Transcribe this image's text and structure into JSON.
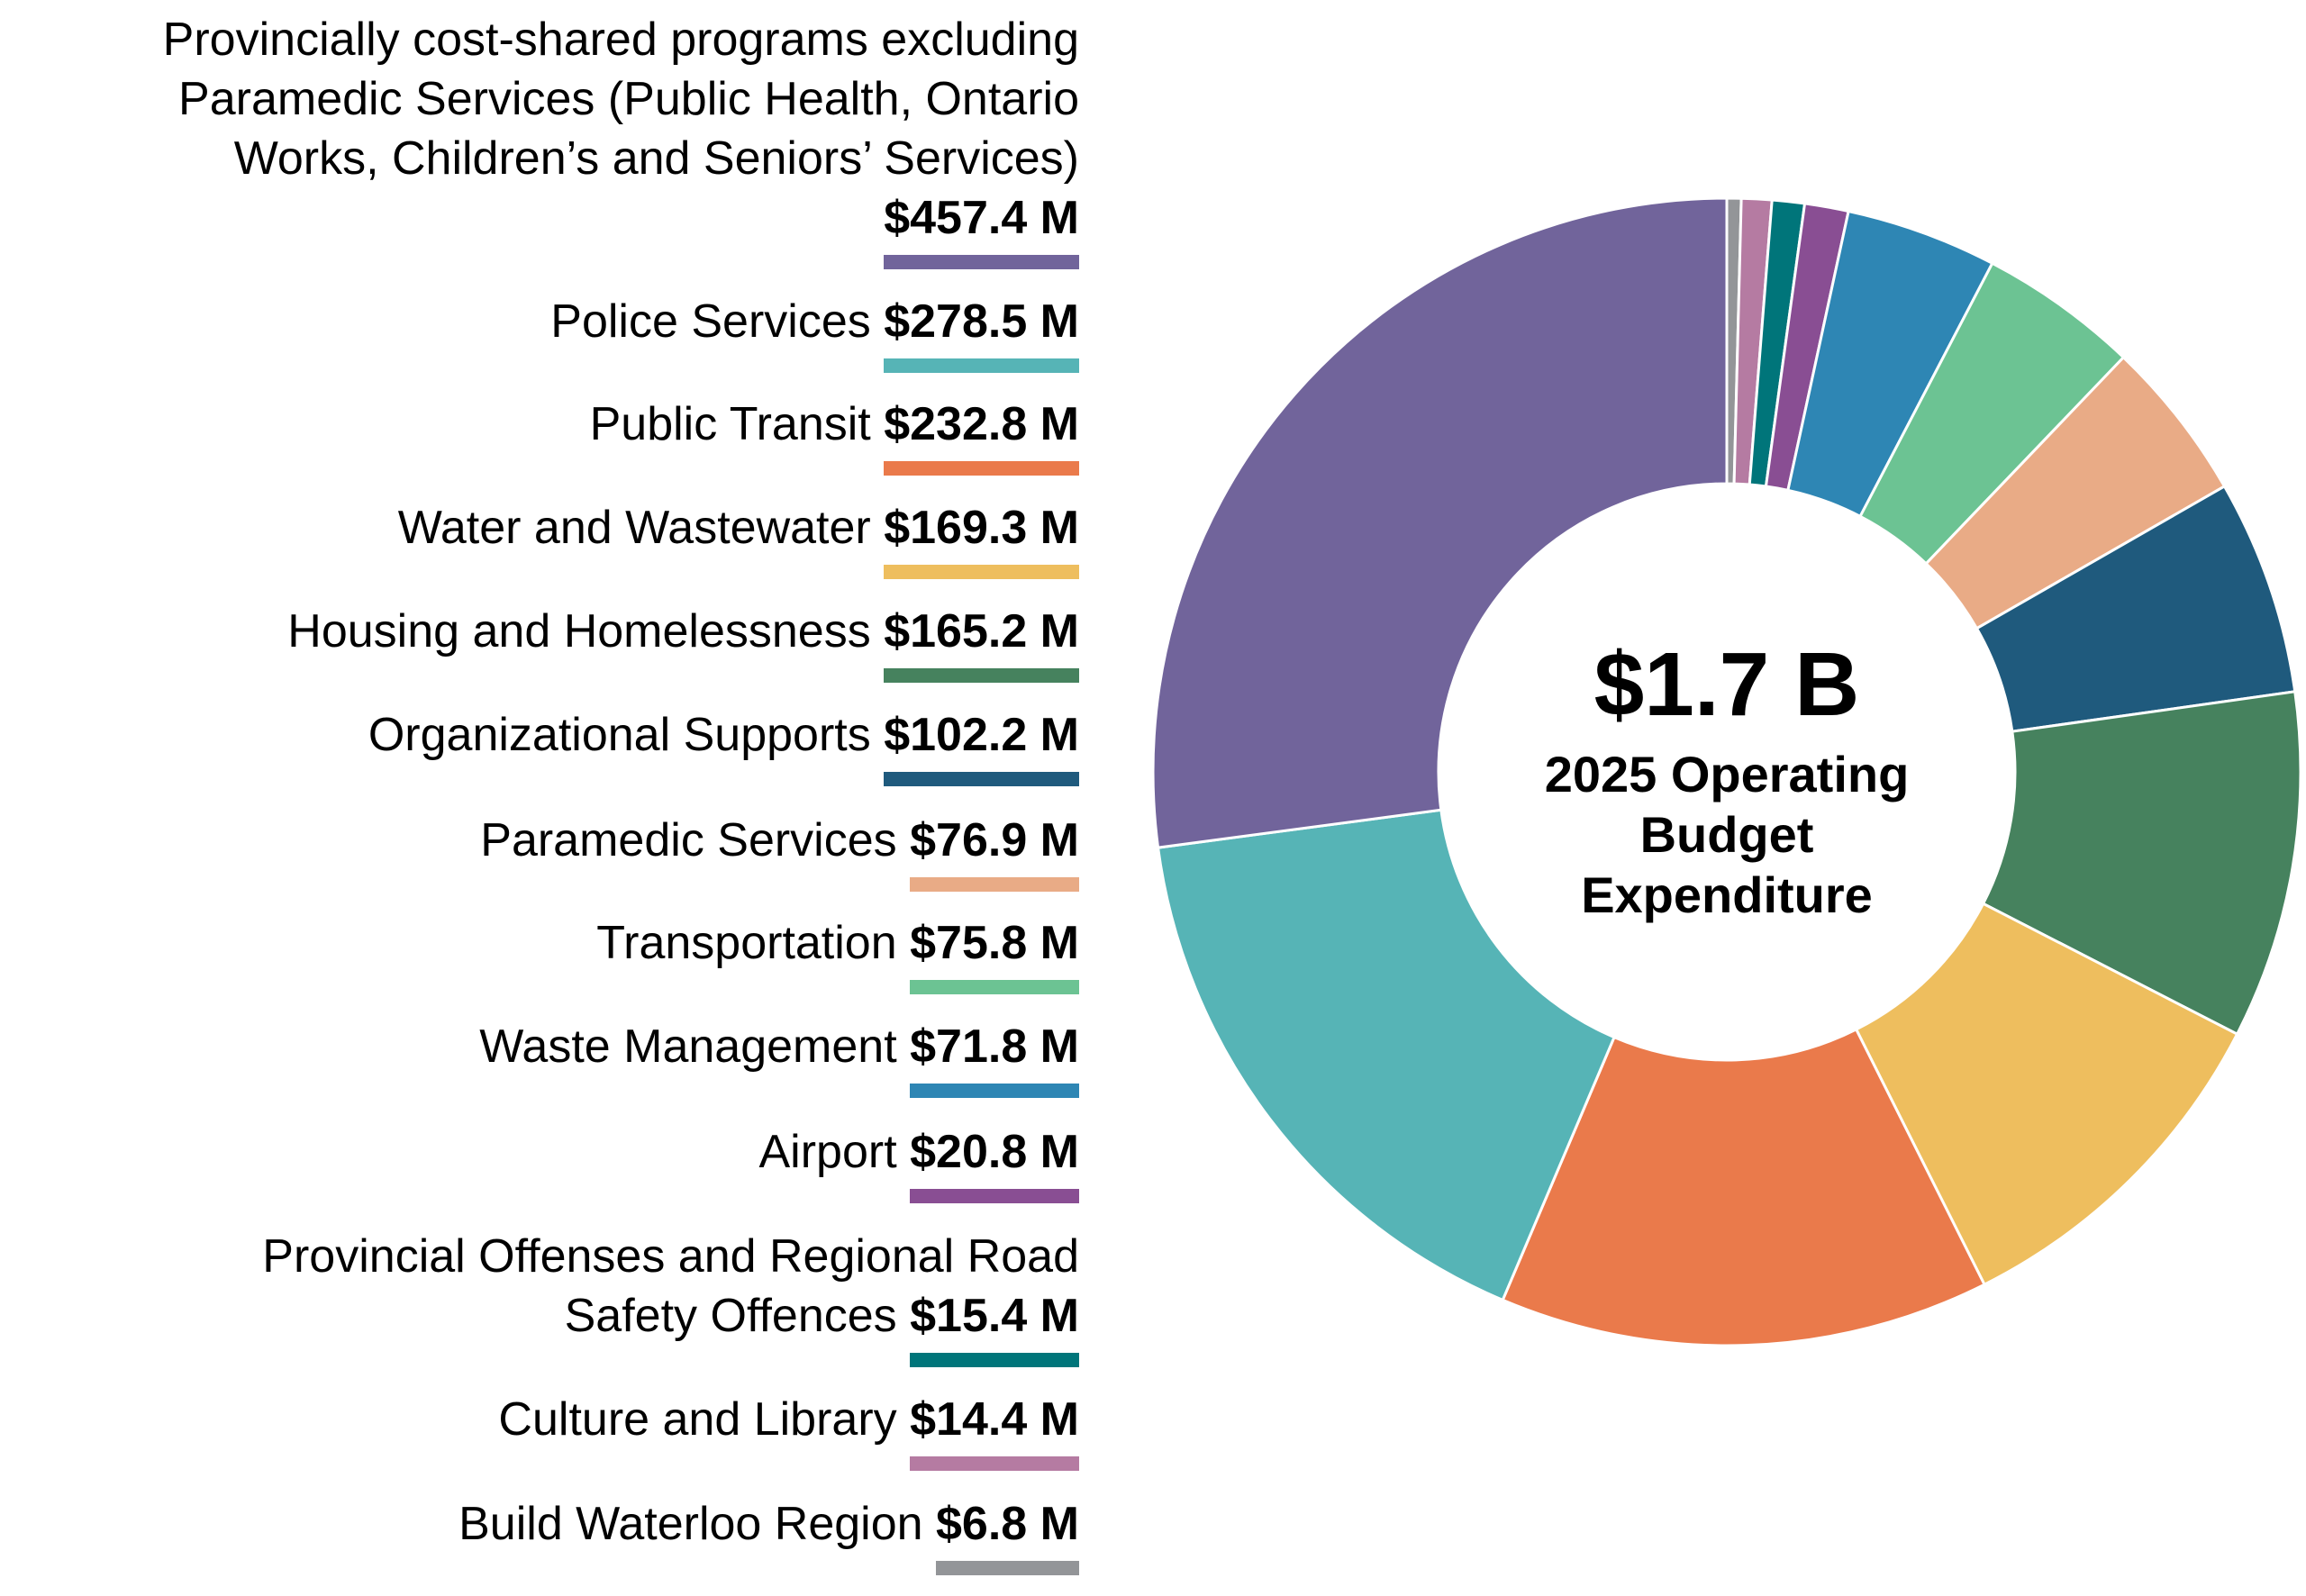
{
  "chart_data": {
    "type": "pie",
    "variant": "donut",
    "center_total": "$1.7 B",
    "center_label": "2025 Operating\nBudget\nExpenditure",
    "legend_placement": "left",
    "unit": "$ M",
    "slices": [
      {
        "label": "Provincially cost-shared programs excluding\nParamedic Services (Public Health, Ontario\nWorks, Children’s and Seniors’ Services)\n",
        "value": 457.4,
        "value_label": "$457.4 M",
        "color": "#71649b"
      },
      {
        "label": "Police Services ",
        "value": 278.5,
        "value_label": "$278.5 M",
        "color": "#56b4b6"
      },
      {
        "label": "Public Transit ",
        "value": 232.8,
        "value_label": "$232.8 M",
        "color": "#ea7a4b"
      },
      {
        "label": "Water and Wastewater ",
        "value": 169.3,
        "value_label": "$169.3 M",
        "color": "#eebe5e"
      },
      {
        "label": "Housing and Homelessness ",
        "value": 165.2,
        "value_label": "$165.2 M",
        "color": "#46825e"
      },
      {
        "label": "Organizational Supports ",
        "value": 102.2,
        "value_label": "$102.2 M",
        "color": "#1f5a7d"
      },
      {
        "label": "Paramedic Services ",
        "value": 76.9,
        "value_label": "$76.9 M",
        "color": "#e9ab86"
      },
      {
        "label": "Transportation ",
        "value": 75.8,
        "value_label": "$75.8 M",
        "color": "#6cc393"
      },
      {
        "label": "Waste Management ",
        "value": 71.8,
        "value_label": "$71.8 M",
        "color": "#2e86b4"
      },
      {
        "label": "Airport ",
        "value": 20.8,
        "value_label": "$20.8 M",
        "color": "#894e93"
      },
      {
        "label": "Provincial Offenses and Regional Road\nSafety Offences ",
        "value": 15.4,
        "value_label": "$15.4 M",
        "color": "#00757a"
      },
      {
        "label": "Culture and Library ",
        "value": 14.4,
        "value_label": "$14.4 M",
        "color": "#b57ba2"
      },
      {
        "label": "Build Waterloo Region ",
        "value": 6.8,
        "value_label": "$6.8 M",
        "color": "#939598"
      }
    ]
  }
}
